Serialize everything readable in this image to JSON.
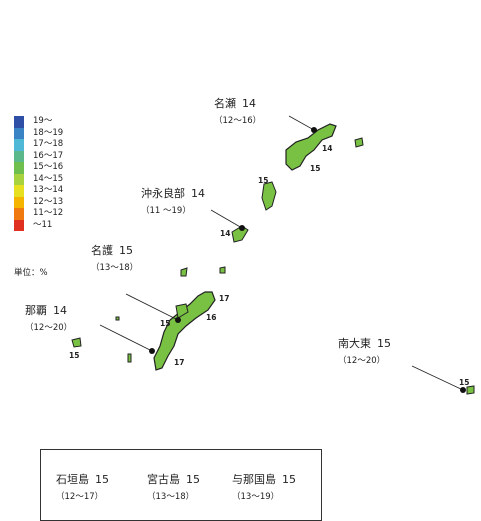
{
  "legend": {
    "items": [
      {
        "label": "19～",
        "color": "#2f4fa6"
      },
      {
        "label": "18～19",
        "color": "#3a83c4"
      },
      {
        "label": "17～18",
        "color": "#4fb8d6"
      },
      {
        "label": "16～17",
        "color": "#5bb88a"
      },
      {
        "label": "15～16",
        "color": "#6fbf4e"
      },
      {
        "label": "14～15",
        "color": "#a8d23e"
      },
      {
        "label": "13～14",
        "color": "#e6e020"
      },
      {
        "label": "12～13",
        "color": "#f5b400"
      },
      {
        "label": "11～12",
        "color": "#f07a10"
      },
      {
        "label": "～11",
        "color": "#e03020"
      }
    ],
    "unit": "単位：%"
  },
  "places": {
    "naze": {
      "name": "名瀬",
      "value": "14",
      "range": "（12～16）"
    },
    "okinoerabu": {
      "name": "沖永良部",
      "value": "14",
      "range": "（11 ～19）"
    },
    "nago": {
      "name": "名護",
      "value": "15",
      "range": "（13～18）"
    },
    "naha": {
      "name": "那覇",
      "value": "14",
      "range": "（12～20）"
    },
    "minamidaito": {
      "name": "南大東",
      "value": "15",
      "range": "（12～20）"
    }
  },
  "island_values": {
    "amami_14": "14",
    "amami_15a": "15",
    "amami_15b": "15",
    "okinoerabu_14": "14",
    "okinawa_17a": "17",
    "okinawa_16": "16",
    "okinawa_15": "15",
    "okinawa_17b": "17",
    "kume_15": "15",
    "daito_15": "15"
  },
  "inset": {
    "ishigaki": {
      "name": "石垣島",
      "value": "15",
      "range": "（12～17）"
    },
    "miyako": {
      "name": "宮古島",
      "value": "15",
      "range": "（13～18）"
    },
    "yonaguni": {
      "name": "与那国島",
      "value": "15",
      "range": "（13～19）"
    }
  }
}
